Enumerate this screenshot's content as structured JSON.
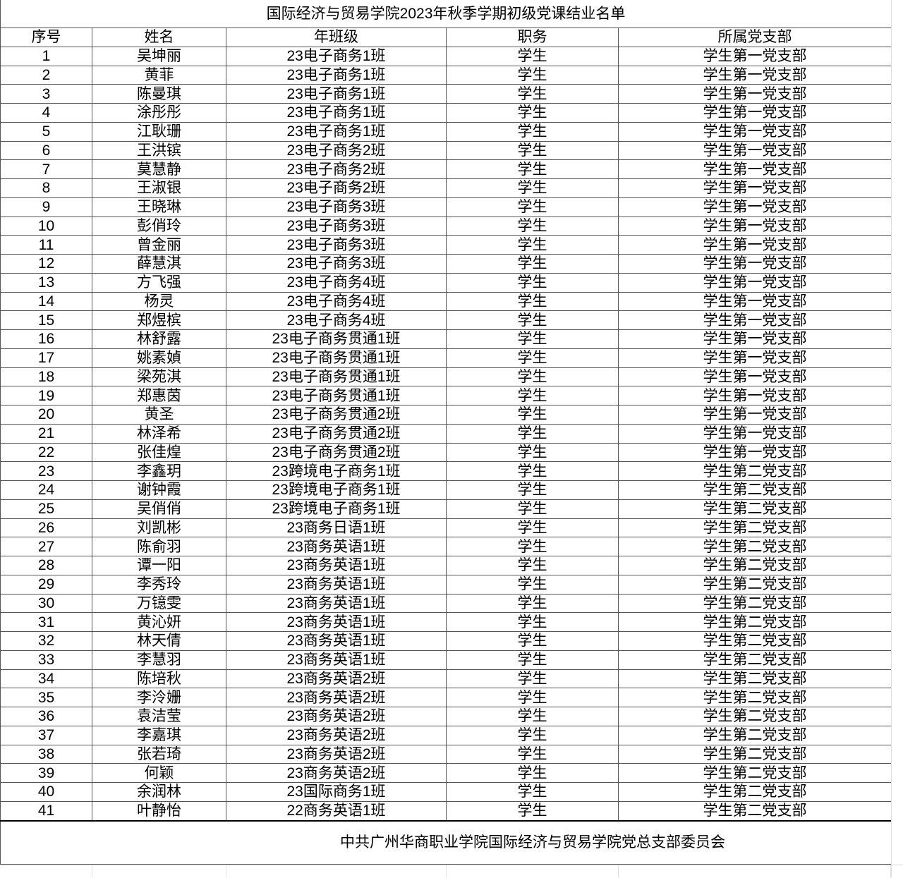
{
  "title": "国际经济与贸易学院2023年秋季学期初级党课结业名单",
  "headers": [
    "序号",
    "姓名",
    "年班级",
    "职务",
    "所属党支部"
  ],
  "rows": [
    [
      "1",
      "吴坤丽",
      "23电子商务1班",
      "学生",
      "学生第一党支部"
    ],
    [
      "2",
      "黄菲",
      "23电子商务1班",
      "学生",
      "学生第一党支部"
    ],
    [
      "3",
      "陈曼琪",
      "23电子商务1班",
      "学生",
      "学生第一党支部"
    ],
    [
      "4",
      "涂彤彤",
      "23电子商务1班",
      "学生",
      "学生第一党支部"
    ],
    [
      "5",
      "江耿珊",
      "23电子商务1班",
      "学生",
      "学生第一党支部"
    ],
    [
      "6",
      "王洪镔",
      "23电子商务2班",
      "学生",
      "学生第一党支部"
    ],
    [
      "7",
      "莫慧静",
      "23电子商务2班",
      "学生",
      "学生第一党支部"
    ],
    [
      "8",
      "王淑银",
      "23电子商务2班",
      "学生",
      "学生第一党支部"
    ],
    [
      "9",
      "王晓琳",
      "23电子商务3班",
      "学生",
      "学生第一党支部"
    ],
    [
      "10",
      "彭俏玲",
      "23电子商务3班",
      "学生",
      "学生第一党支部"
    ],
    [
      "11",
      "曾金丽",
      "23电子商务3班",
      "学生",
      "学生第一党支部"
    ],
    [
      "12",
      "薛慧淇",
      "23电子商务3班",
      "学生",
      "学生第一党支部"
    ],
    [
      "13",
      "方飞强",
      "23电子商务4班",
      "学生",
      "学生第一党支部"
    ],
    [
      "14",
      "杨灵",
      "23电子商务4班",
      "学生",
      "学生第一党支部"
    ],
    [
      "15",
      "郑煜槟",
      "23电子商务4班",
      "学生",
      "学生第一党支部"
    ],
    [
      "16",
      "林舒露",
      "23电子商务贯通1班",
      "学生",
      "学生第一党支部"
    ],
    [
      "17",
      "姚素媜",
      "23电子商务贯通1班",
      "学生",
      "学生第一党支部"
    ],
    [
      "18",
      "梁苑淇",
      "23电子商务贯通1班",
      "学生",
      "学生第一党支部"
    ],
    [
      "19",
      "郑惠茵",
      "23电子商务贯通1班",
      "学生",
      "学生第一党支部"
    ],
    [
      "20",
      "黄圣",
      "23电子商务贯通2班",
      "学生",
      "学生第一党支部"
    ],
    [
      "21",
      "林泽希",
      "23电子商务贯通2班",
      "学生",
      "学生第一党支部"
    ],
    [
      "22",
      "张佳煌",
      "23电子商务贯通2班",
      "学生",
      "学生第一党支部"
    ],
    [
      "23",
      "李鑫玥",
      "23跨境电子商务1班",
      "学生",
      "学生第二党支部"
    ],
    [
      "24",
      "谢钟霞",
      "23跨境电子商务1班",
      "学生",
      "学生第二党支部"
    ],
    [
      "25",
      "吴俏俏",
      "23跨境电子商务1班",
      "学生",
      "学生第二党支部"
    ],
    [
      "26",
      "刘凯彬",
      "23商务日语1班",
      "学生",
      "学生第二党支部"
    ],
    [
      "27",
      "陈俞羽",
      "23商务英语1班",
      "学生",
      "学生第二党支部"
    ],
    [
      "28",
      "谭一阳",
      "23商务英语1班",
      "学生",
      "学生第二党支部"
    ],
    [
      "29",
      "李秀玲",
      "23商务英语1班",
      "学生",
      "学生第二党支部"
    ],
    [
      "30",
      "万镱雯",
      "23商务英语1班",
      "学生",
      "学生第二党支部"
    ],
    [
      "31",
      "黄沁妍",
      "23商务英语1班",
      "学生",
      "学生第二党支部"
    ],
    [
      "32",
      "林天倩",
      "23商务英语1班",
      "学生",
      "学生第二党支部"
    ],
    [
      "33",
      "李慧羽",
      "23商务英语1班",
      "学生",
      "学生第二党支部"
    ],
    [
      "34",
      "陈培秋",
      "23商务英语2班",
      "学生",
      "学生第二党支部"
    ],
    [
      "35",
      "李泠姗",
      "23商务英语2班",
      "学生",
      "学生第二党支部"
    ],
    [
      "36",
      "袁洁莹",
      "23商务英语2班",
      "学生",
      "学生第二党支部"
    ],
    [
      "37",
      "李嘉琪",
      "23商务英语2班",
      "学生",
      "学生第二党支部"
    ],
    [
      "38",
      "张若琦",
      "23商务英语2班",
      "学生",
      "学生第二党支部"
    ],
    [
      "39",
      "何颖",
      "23商务英语2班",
      "学生",
      "学生第二党支部"
    ],
    [
      "40",
      "余润林",
      "23国际商务1班",
      "学生",
      "学生第二党支部"
    ],
    [
      "41",
      "叶静怡",
      "22商务英语1班",
      "学生",
      "学生第二党支部"
    ]
  ],
  "footer": "中共广州华商职业学院国际经济与贸易学院党总支部委员会"
}
